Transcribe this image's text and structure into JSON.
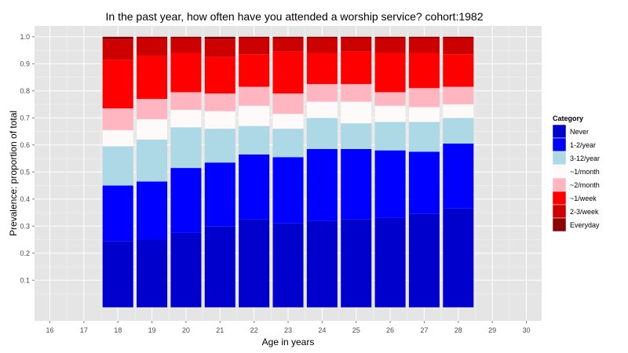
{
  "chart_data": {
    "type": "bar",
    "stacked": true,
    "title": "In the past year, how often have you attended a worship service?   cohort:1982",
    "xlabel": "Age in years",
    "ylabel": "Prevalence: proportion of total",
    "x_ticks": [
      "16",
      "17",
      "18",
      "19",
      "20",
      "21",
      "22",
      "23",
      "24",
      "25",
      "26",
      "27",
      "28",
      "29",
      "30"
    ],
    "y_ticks": [
      "0.1",
      "0.2",
      "0.3",
      "0.4",
      "0.5",
      "0.6",
      "0.7",
      "0.8",
      "0.9",
      "1.0"
    ],
    "xlim": [
      15.55,
      30.45
    ],
    "ylim": [
      -0.05,
      1.04
    ],
    "categories": [
      18,
      19,
      20,
      21,
      22,
      23,
      24,
      25,
      26,
      27,
      28
    ],
    "legend": {
      "title": "Category",
      "position": "right"
    },
    "grid": true,
    "background": "#e5e5e5",
    "series": [
      {
        "name": "Never",
        "color": "#0000cd",
        "values": [
          0.245,
          0.25,
          0.275,
          0.3,
          0.325,
          0.31,
          0.32,
          0.325,
          0.33,
          0.345,
          0.365
        ]
      },
      {
        "name": "1-2/year",
        "color": "#0000ff",
        "values": [
          0.205,
          0.215,
          0.24,
          0.235,
          0.24,
          0.245,
          0.265,
          0.26,
          0.25,
          0.23,
          0.24
        ]
      },
      {
        "name": "3-12/year",
        "color": "#add8e6",
        "values": [
          0.145,
          0.155,
          0.15,
          0.125,
          0.105,
          0.105,
          0.115,
          0.095,
          0.105,
          0.11,
          0.095
        ]
      },
      {
        "name": "~1/month",
        "color": "#fffafa",
        "values": [
          0.06,
          0.075,
          0.065,
          0.065,
          0.075,
          0.055,
          0.06,
          0.08,
          0.06,
          0.055,
          0.05
        ]
      },
      {
        "name": "~2/month",
        "color": "#ffb6c1",
        "values": [
          0.08,
          0.075,
          0.065,
          0.065,
          0.07,
          0.075,
          0.065,
          0.065,
          0.05,
          0.07,
          0.065
        ]
      },
      {
        "name": "~1/week",
        "color": "#ff0000",
        "values": [
          0.18,
          0.16,
          0.145,
          0.135,
          0.12,
          0.155,
          0.115,
          0.12,
          0.145,
          0.13,
          0.12
        ]
      },
      {
        "name": "2-3/week",
        "color": "#cd0000",
        "values": [
          0.075,
          0.065,
          0.055,
          0.065,
          0.06,
          0.05,
          0.055,
          0.05,
          0.055,
          0.055,
          0.06
        ]
      },
      {
        "name": "Everyday",
        "color": "#8b0000",
        "values": [
          0.01,
          0.005,
          0.005,
          0.01,
          0.005,
          0.005,
          0.005,
          0.005,
          0.005,
          0.005,
          0.005
        ]
      }
    ]
  }
}
